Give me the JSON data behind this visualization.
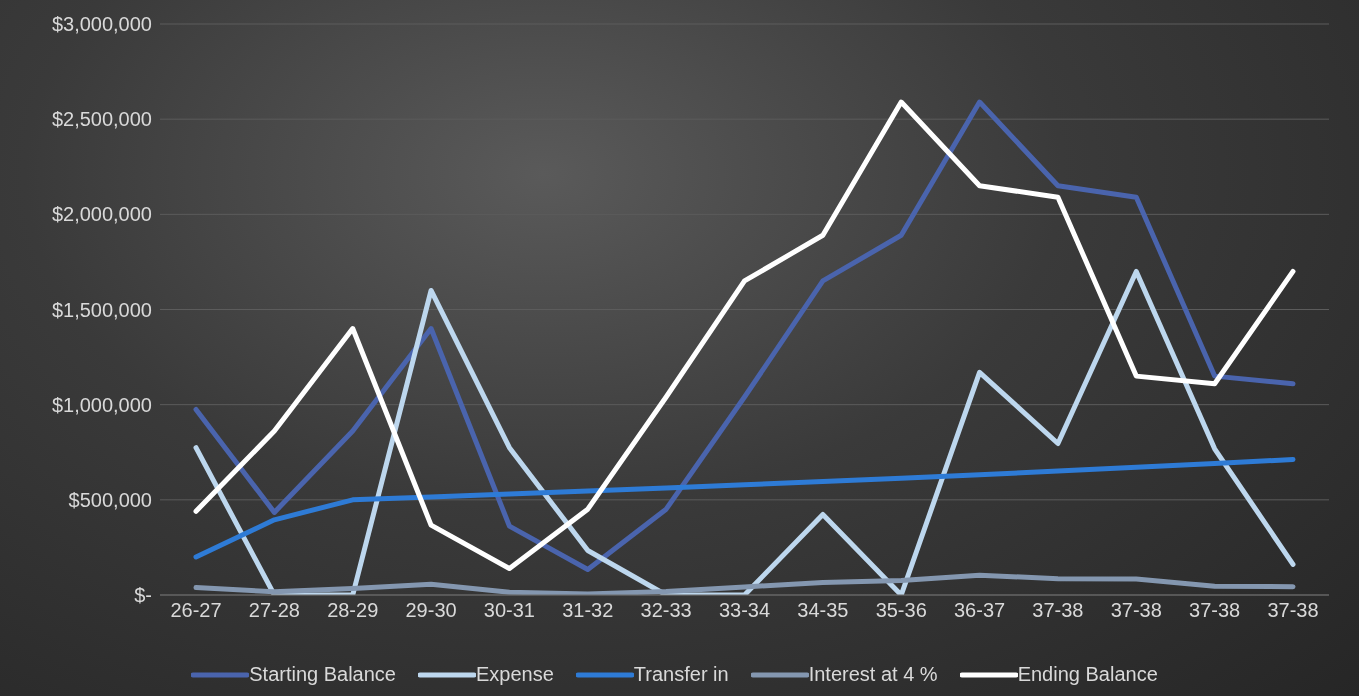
{
  "chart_data": {
    "type": "line",
    "categories": [
      "26-27",
      "27-28",
      "28-29",
      "29-30",
      "30-31",
      "31-32",
      "32-33",
      "33-34",
      "34-35",
      "35-36",
      "36-37",
      "37-38",
      "37-38",
      "37-38",
      "37-38"
    ],
    "series": [
      {
        "name": "Starting Balance",
        "color": "#4a64ad",
        "values": [
          975000,
          434000,
          862000,
          1400000,
          362000,
          134000,
          451000,
          1040000,
          1650000,
          1890000,
          2590000,
          2150000,
          2090000,
          1150000,
          1110000
        ]
      },
      {
        "name": "Expense",
        "color": "#bdd7ee",
        "values": [
          774000,
          0,
          0,
          1600000,
          774000,
          234000,
          0,
          0,
          423000,
          0,
          1170000,
          796000,
          1700000,
          768000,
          161000
        ]
      },
      {
        "name": "Transfer in",
        "color": "#2e7bd6",
        "values": [
          200000,
          395000,
          500000,
          515000,
          530000,
          546000,
          562000,
          579000,
          596000,
          614000,
          632000,
          651000,
          671000,
          691000,
          712000
        ]
      },
      {
        "name": "Interest at 4 %",
        "color": "#8497b0",
        "values": [
          39000,
          17000,
          34000,
          56000,
          15000,
          5000,
          18000,
          42000,
          66000,
          76000,
          104000,
          86000,
          84000,
          46000,
          44000
        ]
      },
      {
        "name": "Ending Balance",
        "color": "#ffffff",
        "values": [
          440000,
          862000,
          1400000,
          367000,
          139000,
          451000,
          1040000,
          1650000,
          1890000,
          2590000,
          2150000,
          2090000,
          1150000,
          1110000,
          1700000
        ]
      }
    ],
    "ylim": [
      0,
      3000000
    ],
    "yticks": [
      {
        "value": 0,
        "label": "$-"
      },
      {
        "value": 500000,
        "label": "$500,000"
      },
      {
        "value": 1000000,
        "label": "$1,000,000"
      },
      {
        "value": 1500000,
        "label": "$1,500,000"
      },
      {
        "value": 2000000,
        "label": "$2,000,000"
      },
      {
        "value": 2500000,
        "label": "$2,500,000"
      },
      {
        "value": 3000000,
        "label": "$3,000,000"
      }
    ],
    "grid": "y",
    "legend": "bottom",
    "marker": "none",
    "line_style": "solid"
  }
}
